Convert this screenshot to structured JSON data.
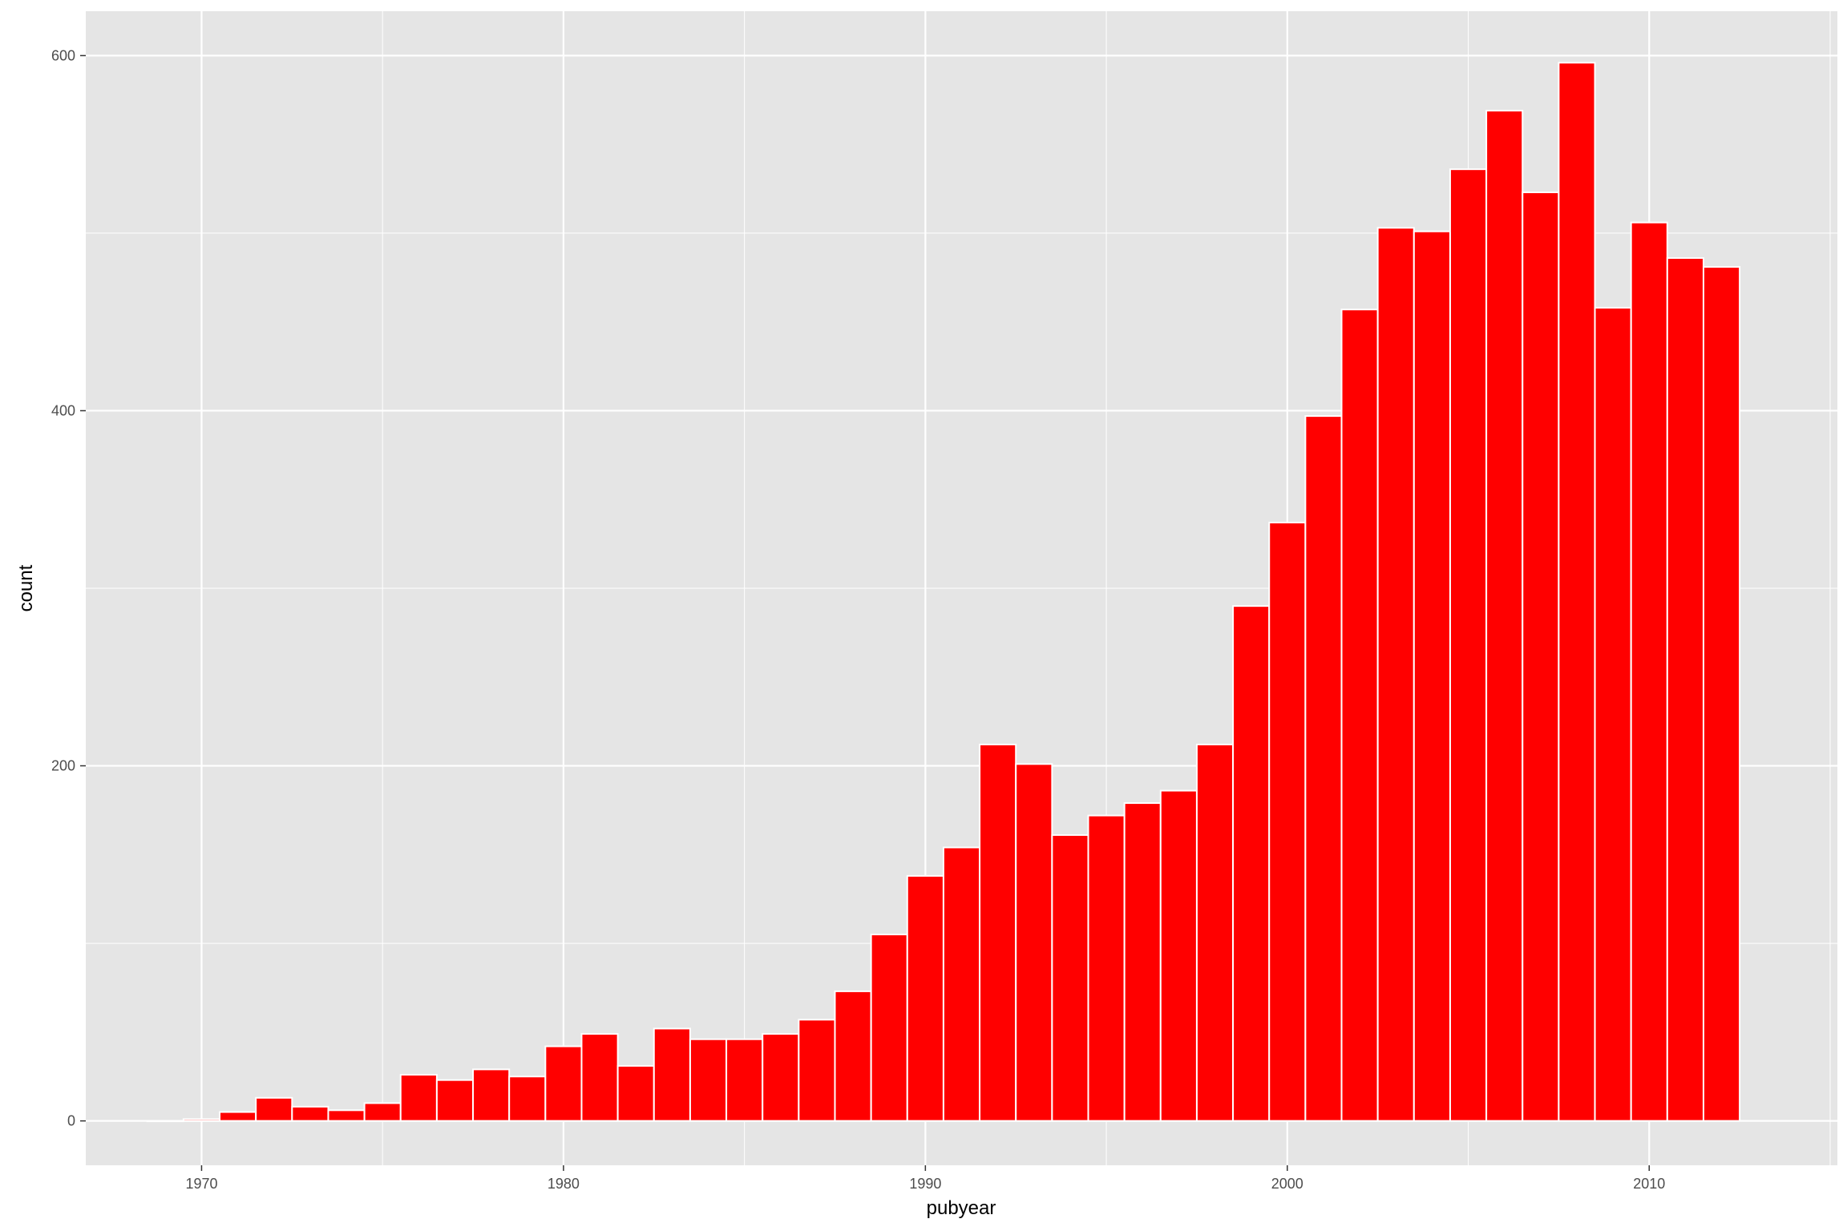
{
  "chart_data": {
    "type": "bar",
    "subtype": "histogram",
    "xlabel": "pubyear",
    "ylabel": "count",
    "xlim": [
      1966.8,
      2015.2
    ],
    "ylim": [
      -25,
      625
    ],
    "x_ticks": [
      1970,
      1980,
      1990,
      2000,
      2010
    ],
    "y_ticks": [
      0,
      200,
      400,
      600
    ],
    "bin_width": 1,
    "bin_start": 1968.5,
    "values": [
      0,
      1,
      5,
      13,
      8,
      6,
      10,
      26,
      23,
      29,
      25,
      42,
      49,
      31,
      52,
      46,
      46,
      49,
      57,
      73,
      105,
      138,
      154,
      212,
      201,
      161,
      172,
      179,
      186,
      212,
      290,
      337,
      397,
      457,
      503,
      501,
      536,
      569,
      523,
      596,
      458,
      506,
      486,
      481
    ],
    "colors": {
      "bar_fill": "#ff0000",
      "bar_outline": "#ffffff",
      "panel": "#e5e5e5",
      "grid": "#ffffff"
    },
    "grid": true,
    "legend": "none"
  }
}
